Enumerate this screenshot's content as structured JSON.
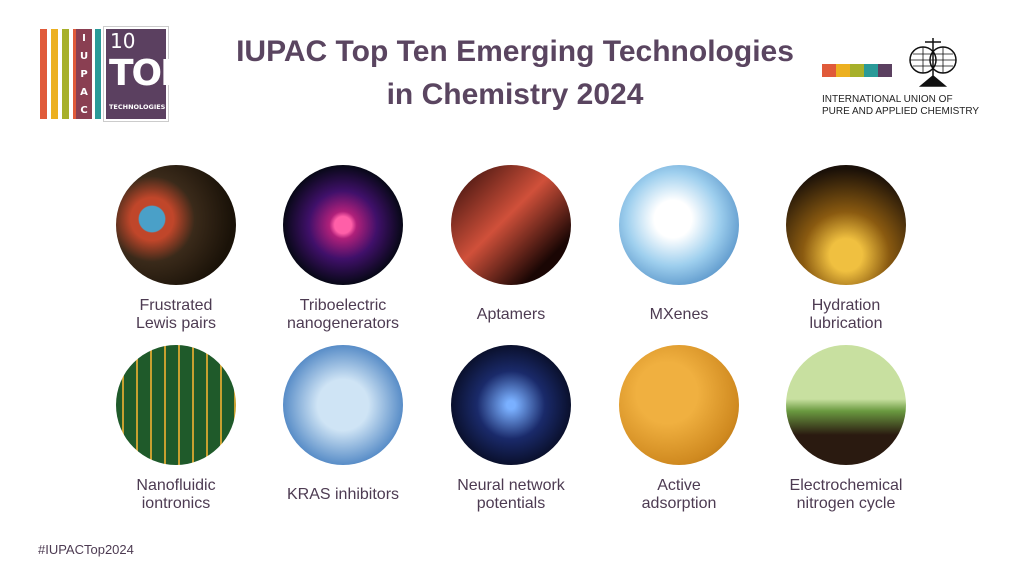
{
  "header": {
    "title": "IUPAC Top Ten Emerging Technologies in Chemistry 2024",
    "logo": {
      "letters": [
        "I",
        "U",
        "P",
        "A",
        "C"
      ],
      "number": "10",
      "word": "TOP",
      "sub": "TECHNOLOGIES"
    },
    "org": {
      "line1": "INTERNATIONAL UNION OF",
      "line2": "PURE AND APPLIED CHEMISTRY",
      "colors": [
        "#e05a3a",
        "#ecb020",
        "#a7b02a",
        "#2a9a98",
        "#5b4060"
      ]
    }
  },
  "technologies": [
    {
      "label": "Frustrated\nLewis pairs"
    },
    {
      "label": "Triboelectric\nnanogenerators"
    },
    {
      "label": "Aptamers"
    },
    {
      "label": "MXenes"
    },
    {
      "label": "Hydration\nlubrication"
    },
    {
      "label": "Nanofluidic\niontronics"
    },
    {
      "label": "KRAS inhibitors"
    },
    {
      "label": "Neural network\npotentials"
    },
    {
      "label": "Active\nadsorption"
    },
    {
      "label": "Electrochemical\nnitrogen cycle"
    }
  ],
  "footer": {
    "hashtag": "#IUPACTop2024"
  }
}
